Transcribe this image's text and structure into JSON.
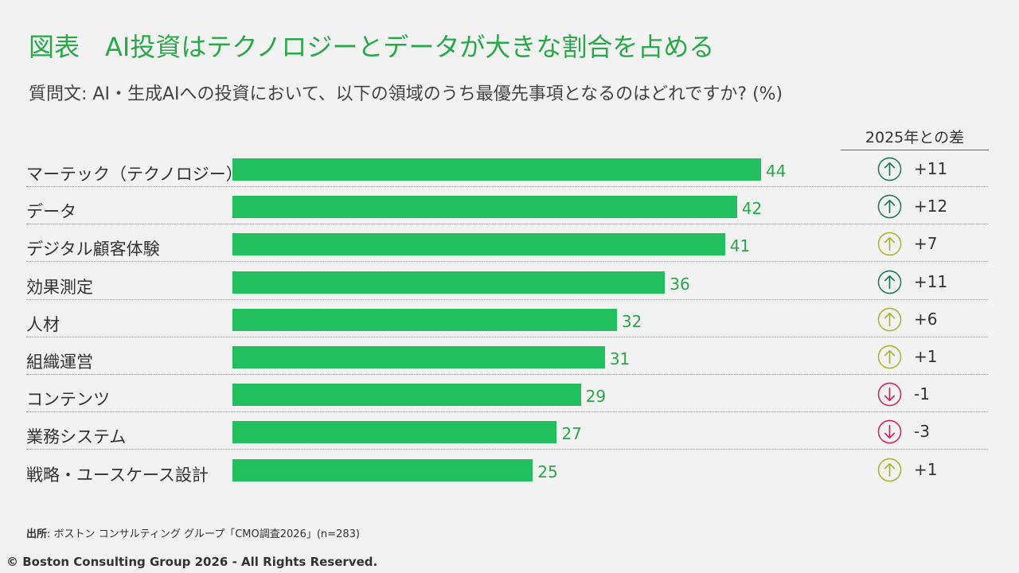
{
  "title": "図表　AI投資はテクノロジーとデータが大きな割合を占める",
  "subtitle": "質問文: AI・生成AIへの投資において、以下の領域のうち最優先事項となるのはどれですか? (%)",
  "diff_header": "2025年との差",
  "colors": {
    "bar": "#21bf5e",
    "value_text": "#29a84a",
    "up_strong": "#1e7a5a",
    "up_weak": "#a8b82e",
    "down": "#d6245f"
  },
  "chart_data": {
    "type": "bar",
    "orientation": "horizontal",
    "categories": [
      "マーテック（テクノロジー）",
      "データ",
      "デジタル顧客体験",
      "効果測定",
      "人材",
      "組織運営",
      "コンテンツ",
      "業務システム",
      "戦略・ユースケース設計"
    ],
    "values": [
      44,
      42,
      41,
      36,
      32,
      31,
      29,
      27,
      25
    ],
    "value_labels": [
      "44",
      "42",
      "41",
      "36",
      "32",
      "31",
      "29",
      "27",
      "25"
    ],
    "diff_labels": [
      "+11",
      "+12",
      "+7",
      "+11",
      "+6",
      "+1",
      "-1",
      "-3",
      "+1"
    ],
    "diff_icons": [
      "up-strong",
      "up-strong",
      "up-weak",
      "up-strong",
      "up-weak",
      "up-weak",
      "down",
      "down",
      "up-weak"
    ],
    "xlim": [
      0,
      44
    ],
    "grid": false
  },
  "source": {
    "label": "出所",
    "text": ": ボストン コンサルティング グループ「CMO調査2026」(n=283)"
  },
  "copyright": "© Boston Consulting Group 2026 - All Rights Reserved."
}
